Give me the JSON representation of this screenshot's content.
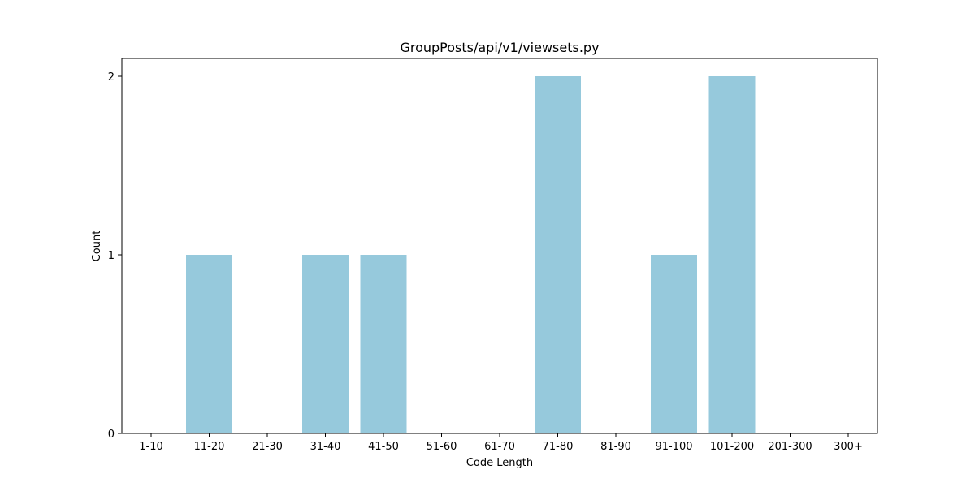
{
  "chart_data": {
    "type": "bar",
    "title": "GroupPosts/api/v1/viewsets.py",
    "xlabel": "Code Length",
    "ylabel": "Count",
    "categories": [
      "1-10",
      "11-20",
      "21-30",
      "31-40",
      "41-50",
      "51-60",
      "61-70",
      "71-80",
      "81-90",
      "91-100",
      "101-200",
      "201-300",
      "300+"
    ],
    "values": [
      0,
      1,
      0,
      1,
      1,
      0,
      0,
      2,
      0,
      1,
      2,
      0,
      0
    ],
    "yticks": [
      "0",
      "1",
      "2"
    ],
    "ylim": [
      0,
      2.1
    ],
    "bar_color": "#96c9dc",
    "grid": false,
    "legend": "none"
  }
}
